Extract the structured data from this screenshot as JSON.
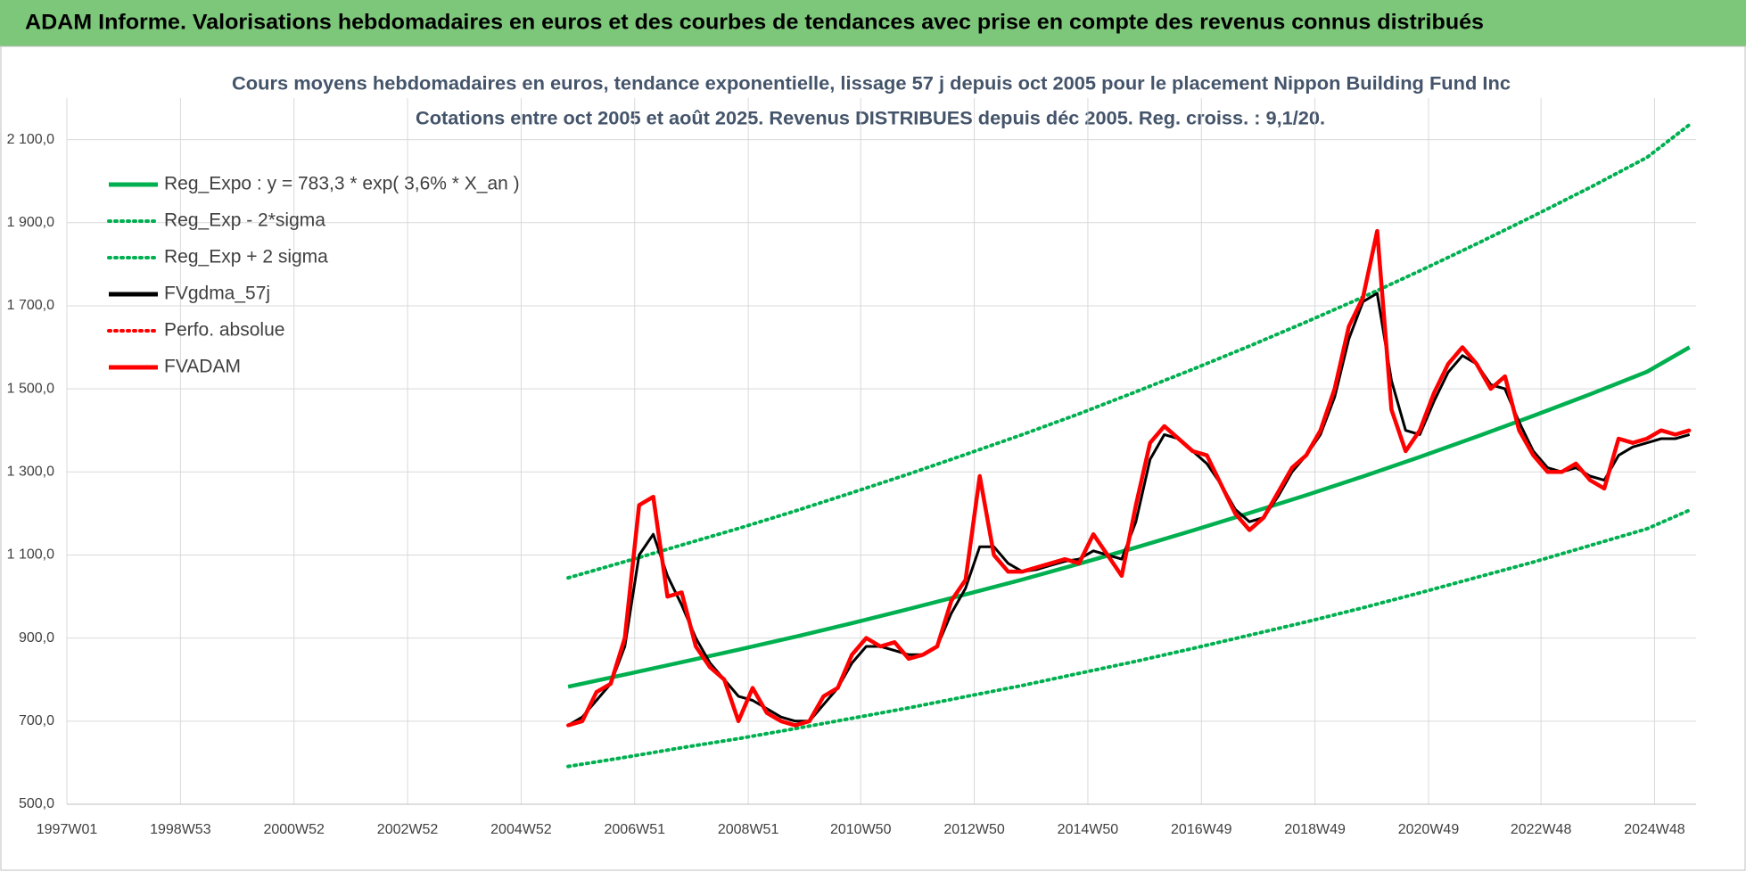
{
  "header": {
    "title": "ADAM Informe. Valorisations hebdomadaires en euros et des courbes de tendances avec prise en compte des revenus connus distribués"
  },
  "chart_data": {
    "type": "line",
    "title": "Cours moyens hebdomadaires en euros, tendance exponentielle, lissage 57 j depuis oct 2005 pour le placement Nippon Building Fund Inc",
    "subtitle": "Cotations entre oct 2005 et août 2025. Revenus DISTRIBUES depuis déc 2005. Reg. croiss. : 9,1/20.",
    "xlim": [
      0,
      1492
    ],
    "xticks": [
      {
        "value": 0,
        "label": "1997W01"
      },
      {
        "value": 104,
        "label": "1998W53"
      },
      {
        "value": 208,
        "label": "2000W52"
      },
      {
        "value": 312,
        "label": "2002W52"
      },
      {
        "value": 416,
        "label": "2004W52"
      },
      {
        "value": 520,
        "label": "2006W51"
      },
      {
        "value": 624,
        "label": "2008W51"
      },
      {
        "value": 727,
        "label": "2010W50"
      },
      {
        "value": 831,
        "label": "2012W50"
      },
      {
        "value": 935,
        "label": "2014W50"
      },
      {
        "value": 1039,
        "label": "2016W49"
      },
      {
        "value": 1143,
        "label": "2018W49"
      },
      {
        "value": 1247,
        "label": "2020W49"
      },
      {
        "value": 1350,
        "label": "2022W48"
      },
      {
        "value": 1454,
        "label": "2024W48"
      }
    ],
    "ylim": [
      500,
      2200
    ],
    "yticks": [
      {
        "value": 500,
        "label": "500,0"
      },
      {
        "value": 700,
        "label": "700,0"
      },
      {
        "value": 900,
        "label": "900,0"
      },
      {
        "value": 1100,
        "label": "1 100,0"
      },
      {
        "value": 1300,
        "label": "1 300,0"
      },
      {
        "value": 1500,
        "label": "1 500,0"
      },
      {
        "value": 1700,
        "label": "1 700,0"
      },
      {
        "value": 1900,
        "label": "1 900,0"
      },
      {
        "value": 2100,
        "label": "2 100,0"
      }
    ],
    "grid": true,
    "legend": "top-left",
    "series": [
      {
        "name": "Reg_Expo : y = 783,3 * exp( 3,6% *  X_an )",
        "color": "#00b050",
        "style": "solid",
        "x": [
          459,
          511,
          563,
          615,
          667,
          719,
          771,
          823,
          875,
          927,
          979,
          1031,
          1083,
          1135,
          1187,
          1239,
          1291,
          1343,
          1395,
          1447,
          1486
        ],
        "values": [
          783,
          812,
          842,
          872,
          903,
          936,
          970,
          1005,
          1041,
          1079,
          1118,
          1159,
          1201,
          1244,
          1289,
          1336,
          1385,
          1435,
          1487,
          1541,
          1600
        ]
      },
      {
        "name": "Reg_Exp - 2*sigma",
        "color": "#00b050",
        "style": "dotted",
        "x": [
          459,
          511,
          563,
          615,
          667,
          719,
          771,
          823,
          875,
          927,
          979,
          1031,
          1083,
          1135,
          1187,
          1239,
          1291,
          1343,
          1395,
          1447,
          1486
        ],
        "values": [
          591,
          613,
          636,
          658,
          682,
          707,
          732,
          759,
          786,
          815,
          844,
          875,
          907,
          939,
          973,
          1009,
          1046,
          1083,
          1123,
          1163,
          1208
        ]
      },
      {
        "name": "Reg_Exp + 2 sigma",
        "color": "#00b050",
        "style": "dotted",
        "x": [
          459,
          511,
          563,
          615,
          667,
          719,
          771,
          823,
          875,
          927,
          979,
          1031,
          1083,
          1135,
          1187,
          1239,
          1291,
          1343,
          1395,
          1447,
          1486
        ],
        "values": [
          1045,
          1084,
          1124,
          1164,
          1206,
          1250,
          1295,
          1342,
          1390,
          1440,
          1493,
          1547,
          1603,
          1661,
          1721,
          1784,
          1849,
          1916,
          1985,
          2057,
          2136
        ]
      },
      {
        "name": "FVgdma_57j",
        "color": "#000000",
        "style": "solid",
        "x": [
          459,
          472,
          485,
          498,
          511,
          524,
          537,
          550,
          563,
          576,
          589,
          602,
          615,
          628,
          641,
          654,
          667,
          680,
          693,
          706,
          719,
          732,
          745,
          758,
          771,
          784,
          797,
          810,
          823,
          836,
          849,
          862,
          875,
          888,
          901,
          914,
          927,
          940,
          953,
          966,
          979,
          992,
          1005,
          1018,
          1031,
          1044,
          1057,
          1070,
          1083,
          1096,
          1109,
          1122,
          1135,
          1148,
          1161,
          1174,
          1187,
          1200,
          1213,
          1226,
          1239,
          1252,
          1265,
          1278,
          1291,
          1304,
          1317,
          1330,
          1343,
          1356,
          1369,
          1382,
          1395,
          1408,
          1421,
          1434,
          1447,
          1460,
          1473,
          1486
        ],
        "values": [
          690,
          710,
          750,
          790,
          880,
          1100,
          1150,
          1050,
          980,
          900,
          840,
          800,
          760,
          750,
          730,
          710,
          700,
          700,
          740,
          780,
          840,
          880,
          880,
          870,
          860,
          860,
          880,
          960,
          1020,
          1120,
          1120,
          1080,
          1060,
          1065,
          1075,
          1085,
          1090,
          1110,
          1100,
          1090,
          1180,
          1330,
          1390,
          1380,
          1350,
          1320,
          1270,
          1210,
          1180,
          1190,
          1240,
          1300,
          1340,
          1390,
          1480,
          1620,
          1710,
          1730,
          1520,
          1400,
          1390,
          1470,
          1540,
          1580,
          1560,
          1510,
          1500,
          1420,
          1350,
          1310,
          1300,
          1310,
          1290,
          1280,
          1340,
          1360,
          1370,
          1380,
          1380,
          1390
        ]
      },
      {
        "name": "Perfo. absolue",
        "color": "#ff0000",
        "style": "dotted",
        "x": [
          459,
          472,
          485,
          498,
          511,
          524,
          537,
          550,
          563,
          576,
          589,
          602,
          615,
          628,
          641,
          654,
          667,
          680,
          693,
          706,
          719,
          732,
          745,
          758,
          771,
          784,
          797,
          810,
          823,
          836,
          849,
          862,
          875,
          888,
          901,
          914,
          927,
          940,
          953,
          966,
          979,
          992,
          1005,
          1018,
          1031,
          1044,
          1057,
          1070,
          1083,
          1096,
          1109,
          1122,
          1135,
          1148,
          1161,
          1174,
          1187,
          1200,
          1213,
          1226,
          1239,
          1252,
          1265,
          1278,
          1291,
          1304,
          1317,
          1330,
          1343,
          1356,
          1369,
          1382,
          1395,
          1408,
          1421,
          1434,
          1447,
          1460,
          1473,
          1486
        ],
        "values": [
          690,
          700,
          770,
          790,
          900,
          1220,
          1240,
          1000,
          1010,
          880,
          830,
          800,
          700,
          780,
          720,
          700,
          690,
          700,
          760,
          780,
          860,
          900,
          880,
          890,
          850,
          860,
          880,
          990,
          1040,
          1290,
          1100,
          1060,
          1060,
          1070,
          1080,
          1090,
          1080,
          1150,
          1100,
          1050,
          1220,
          1370,
          1410,
          1380,
          1350,
          1340,
          1270,
          1200,
          1160,
          1190,
          1250,
          1310,
          1340,
          1400,
          1500,
          1650,
          1720,
          1880,
          1450,
          1350,
          1400,
          1490,
          1560,
          1600,
          1560,
          1500,
          1530,
          1400,
          1340,
          1300,
          1300,
          1320,
          1280,
          1260,
          1380,
          1370,
          1380,
          1400,
          1390,
          1400
        ]
      },
      {
        "name": "FVADAM",
        "color": "#ff0000",
        "style": "solid",
        "x": [
          459,
          472,
          485,
          498,
          511,
          524,
          537,
          550,
          563,
          576,
          589,
          602,
          615,
          628,
          641,
          654,
          667,
          680,
          693,
          706,
          719,
          732,
          745,
          758,
          771,
          784,
          797,
          810,
          823,
          836,
          849,
          862,
          875,
          888,
          901,
          914,
          927,
          940,
          953,
          966,
          979,
          992,
          1005,
          1018,
          1031,
          1044,
          1057,
          1070,
          1083,
          1096,
          1109,
          1122,
          1135,
          1148,
          1161,
          1174,
          1187,
          1200,
          1213,
          1226,
          1239,
          1252,
          1265,
          1278,
          1291,
          1304,
          1317,
          1330,
          1343,
          1356,
          1369,
          1382,
          1395,
          1408,
          1421,
          1434,
          1447,
          1460,
          1473,
          1486
        ],
        "values": [
          690,
          700,
          770,
          790,
          900,
          1220,
          1240,
          1000,
          1010,
          880,
          830,
          800,
          700,
          780,
          720,
          700,
          690,
          700,
          760,
          780,
          860,
          900,
          880,
          890,
          850,
          860,
          880,
          990,
          1040,
          1290,
          1100,
          1060,
          1060,
          1070,
          1080,
          1090,
          1080,
          1150,
          1100,
          1050,
          1220,
          1370,
          1410,
          1380,
          1350,
          1340,
          1270,
          1200,
          1160,
          1190,
          1250,
          1310,
          1340,
          1400,
          1500,
          1650,
          1720,
          1880,
          1450,
          1350,
          1400,
          1490,
          1560,
          1600,
          1560,
          1500,
          1530,
          1400,
          1340,
          1300,
          1300,
          1320,
          1280,
          1260,
          1380,
          1370,
          1380,
          1400,
          1390,
          1400
        ]
      }
    ]
  }
}
